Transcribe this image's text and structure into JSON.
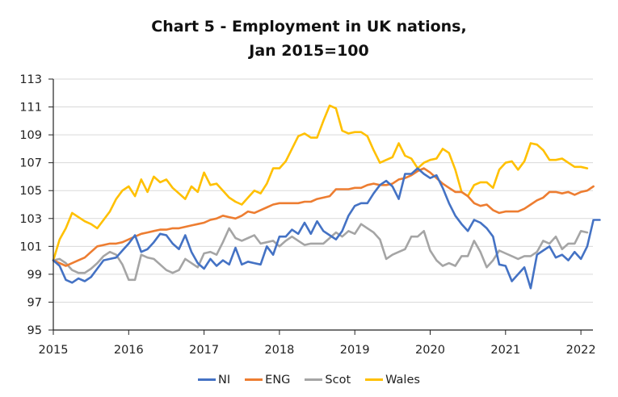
{
  "chart_data": {
    "type": "line",
    "title_line1": "Chart 5 - Employment in UK nations,",
    "title_line2": "Jan 2015=100",
    "xlabel": "",
    "ylabel": "",
    "x_frequency": "monthly",
    "x_start": "Jan 2015",
    "ylim": [
      95,
      113
    ],
    "yticks": [
      95,
      97,
      99,
      101,
      103,
      105,
      107,
      109,
      111,
      113
    ],
    "xticks": [
      "2015",
      "2016",
      "2017",
      "2018",
      "2019",
      "2020",
      "2021",
      "2022"
    ],
    "grid": "horizontal",
    "legend_position": "bottom",
    "series": [
      {
        "name": "NI",
        "color": "#4472c4",
        "values": [
          100,
          99.6,
          98.6,
          98.4,
          98.7,
          98.5,
          98.8,
          99.4,
          100.0,
          100.1,
          100.2,
          100.7,
          101.2,
          101.8,
          100.6,
          100.8,
          101.3,
          101.9,
          101.8,
          101.2,
          100.8,
          101.8,
          100.6,
          99.8,
          99.4,
          100.1,
          99.6,
          100.0,
          99.7,
          100.9,
          99.7,
          99.9,
          99.8,
          99.7,
          101.0,
          100.4,
          101.7,
          101.7,
          102.2,
          101.9,
          102.7,
          101.9,
          102.8,
          102.1,
          101.8,
          101.5,
          102.1,
          103.2,
          103.9,
          104.1,
          104.1,
          104.8,
          105.4,
          105.7,
          105.3,
          104.4,
          106.2,
          106.2,
          106.6,
          106.2,
          105.9,
          106.1,
          105.2,
          104.1,
          103.2,
          102.6,
          102.1,
          102.9,
          102.7,
          102.3,
          101.7,
          99.7,
          99.6,
          98.5,
          99.0,
          99.5,
          98.0,
          100.4,
          100.7,
          101.0,
          100.2,
          100.4,
          100.0,
          100.6,
          100.1,
          101.0,
          102.9,
          102.9
        ]
      },
      {
        "name": "ENG",
        "color": "#ed7d31",
        "values": [
          100,
          99.8,
          99.6,
          99.8,
          100.0,
          100.2,
          100.6,
          101.0,
          101.1,
          101.2,
          101.2,
          101.3,
          101.5,
          101.7,
          101.9,
          102.0,
          102.1,
          102.2,
          102.2,
          102.3,
          102.3,
          102.4,
          102.5,
          102.6,
          102.7,
          102.9,
          103.0,
          103.2,
          103.1,
          103.0,
          103.2,
          103.5,
          103.4,
          103.6,
          103.8,
          104.0,
          104.1,
          104.1,
          104.1,
          104.1,
          104.2,
          104.2,
          104.4,
          104.5,
          104.6,
          105.1,
          105.1,
          105.1,
          105.2,
          105.2,
          105.4,
          105.5,
          105.4,
          105.4,
          105.5,
          105.8,
          105.9,
          106.1,
          106.4,
          106.6,
          106.3,
          105.9,
          105.5,
          105.2,
          104.9,
          104.9,
          104.6,
          104.1,
          103.9,
          104.0,
          103.6,
          103.4,
          103.5,
          103.5,
          103.5,
          103.7,
          104.0,
          104.3,
          104.5,
          104.9,
          104.9,
          104.8,
          104.9,
          104.7,
          104.9,
          105.0,
          105.3
        ]
      },
      {
        "name": "Scot",
        "color": "#a5a5a5",
        "values": [
          100,
          100.1,
          99.8,
          99.3,
          99.1,
          99.1,
          99.4,
          99.8,
          100.3,
          100.6,
          100.4,
          99.7,
          98.6,
          98.6,
          100.4,
          100.2,
          100.1,
          99.7,
          99.3,
          99.1,
          99.3,
          100.1,
          99.8,
          99.5,
          100.5,
          100.6,
          100.4,
          101.3,
          102.3,
          101.6,
          101.4,
          101.6,
          101.8,
          101.2,
          101.3,
          101.4,
          101.0,
          101.4,
          101.7,
          101.4,
          101.1,
          101.2,
          101.2,
          101.2,
          101.6,
          102.0,
          101.7,
          102.1,
          101.9,
          102.6,
          102.3,
          102.0,
          101.5,
          100.1,
          100.4,
          100.6,
          100.8,
          101.7,
          101.7,
          102.1,
          100.7,
          100.0,
          99.6,
          99.8,
          99.6,
          100.3,
          100.3,
          101.4,
          100.6,
          99.5,
          100.0,
          100.7,
          100.5,
          100.3,
          100.1,
          100.3,
          100.3,
          100.6,
          101.4,
          101.2,
          101.7,
          100.8,
          101.2,
          101.2,
          102.1,
          102.0
        ]
      },
      {
        "name": "Wales",
        "color": "#ffc000",
        "values": [
          100,
          101.5,
          102.3,
          103.4,
          103.1,
          102.8,
          102.6,
          102.3,
          102.9,
          103.5,
          104.4,
          105.0,
          105.3,
          104.6,
          105.8,
          104.9,
          106.0,
          105.6,
          105.8,
          105.2,
          104.8,
          104.4,
          105.3,
          104.9,
          106.3,
          105.4,
          105.5,
          105.0,
          104.5,
          104.2,
          104.0,
          104.5,
          105.0,
          104.8,
          105.5,
          106.6,
          106.6,
          107.1,
          108.0,
          108.9,
          109.1,
          108.8,
          108.8,
          110.0,
          111.1,
          110.9,
          109.3,
          109.1,
          109.2,
          109.2,
          108.9,
          107.9,
          107.0,
          107.2,
          107.4,
          108.4,
          107.5,
          107.3,
          106.6,
          107.0,
          107.2,
          107.3,
          108.0,
          107.7,
          106.5,
          104.9,
          104.6,
          105.4,
          105.6,
          105.6,
          105.2,
          106.5,
          107.0,
          107.1,
          106.5,
          107.1,
          108.4,
          108.3,
          107.9,
          107.2,
          107.2,
          107.3,
          107.0,
          106.7,
          106.7,
          106.6
        ]
      }
    ]
  }
}
